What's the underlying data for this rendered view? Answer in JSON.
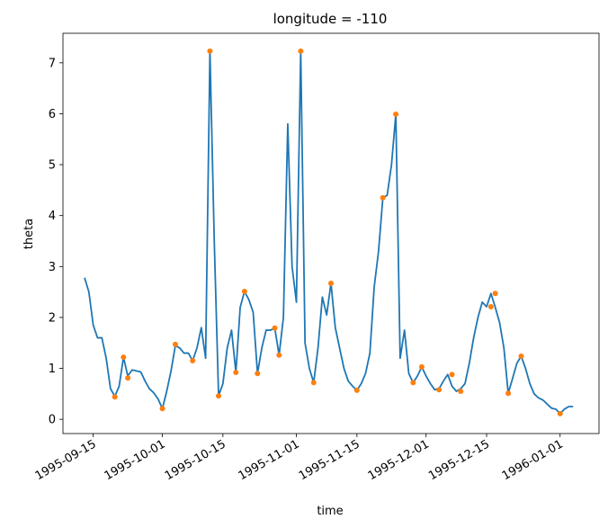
{
  "chart_data": {
    "type": "line",
    "title": "longitude = -110",
    "x_label": "time",
    "y_label": "theta",
    "xlim": [
      "1995-09-08",
      "1996-01-10"
    ],
    "xticks": [
      "1995-09-15",
      "1995-10-01",
      "1995-10-15",
      "1995-11-01",
      "1995-11-15",
      "1995-12-01",
      "1995-12-15",
      "1996-01-01"
    ],
    "ylim": [
      -0.28,
      7.58
    ],
    "yticks": [
      0,
      1,
      2,
      3,
      4,
      5,
      6,
      7
    ],
    "series": [
      {
        "type": "line",
        "color": "#1f77b4",
        "x": [
          "1995-09-13",
          "1995-09-14",
          "1995-09-15",
          "1995-09-16",
          "1995-09-17",
          "1995-09-18",
          "1995-09-19",
          "1995-09-20",
          "1995-09-21",
          "1995-09-22",
          "1995-09-23",
          "1995-09-24",
          "1995-09-25",
          "1995-09-26",
          "1995-09-27",
          "1995-09-28",
          "1995-09-29",
          "1995-09-30",
          "1995-10-01",
          "1995-10-02",
          "1995-10-03",
          "1995-10-04",
          "1995-10-05",
          "1995-10-06",
          "1995-10-07",
          "1995-10-08",
          "1995-10-09",
          "1995-10-10",
          "1995-10-11",
          "1995-10-12",
          "1995-10-13",
          "1995-10-14",
          "1995-10-15",
          "1995-10-16",
          "1995-10-17",
          "1995-10-18",
          "1995-10-19",
          "1995-10-20",
          "1995-10-21",
          "1995-10-22",
          "1995-10-23",
          "1995-10-24",
          "1995-10-25",
          "1995-10-26",
          "1995-10-27",
          "1995-10-28",
          "1995-10-29",
          "1995-10-30",
          "1995-10-31",
          "1995-11-01",
          "1995-11-02",
          "1995-11-03",
          "1995-11-04",
          "1995-11-05",
          "1995-11-06",
          "1995-11-07",
          "1995-11-08",
          "1995-11-09",
          "1995-11-10",
          "1995-11-11",
          "1995-11-12",
          "1995-11-13",
          "1995-11-14",
          "1995-11-15",
          "1995-11-16",
          "1995-11-17",
          "1995-11-18",
          "1995-11-19",
          "1995-11-20",
          "1995-11-21",
          "1995-11-22",
          "1995-11-23",
          "1995-11-24",
          "1995-11-25",
          "1995-11-26",
          "1995-11-27",
          "1995-11-28",
          "1995-11-29",
          "1995-11-30",
          "1995-12-01",
          "1995-12-02",
          "1995-12-03",
          "1995-12-04",
          "1995-12-05",
          "1995-12-06",
          "1995-12-07",
          "1995-12-08",
          "1995-12-09",
          "1995-12-10",
          "1995-12-11",
          "1995-12-12",
          "1995-12-13",
          "1995-12-14",
          "1995-12-15",
          "1995-12-16",
          "1995-12-17",
          "1995-12-18",
          "1995-12-19",
          "1995-12-20",
          "1995-12-21",
          "1995-12-22",
          "1995-12-23",
          "1995-12-24",
          "1995-12-25",
          "1995-12-26",
          "1995-12-27",
          "1995-12-28",
          "1995-12-29",
          "1995-12-30",
          "1995-12-31",
          "1996-01-01",
          "1996-01-02",
          "1996-01-03",
          "1996-01-04"
        ],
        "values": [
          2.78,
          2.5,
          1.85,
          1.6,
          1.6,
          1.2,
          0.6,
          0.45,
          0.65,
          1.22,
          0.85,
          0.97,
          0.95,
          0.93,
          0.75,
          0.6,
          0.52,
          0.4,
          0.21,
          0.55,
          0.95,
          1.45,
          1.4,
          1.3,
          1.3,
          1.15,
          1.4,
          1.8,
          1.2,
          7.23,
          3.5,
          0.46,
          0.7,
          1.4,
          1.75,
          0.92,
          2.2,
          2.51,
          2.35,
          2.1,
          0.9,
          1.4,
          1.75,
          1.75,
          1.79,
          1.26,
          2.0,
          5.8,
          3.0,
          2.3,
          7.23,
          1.5,
          1.0,
          0.72,
          1.4,
          2.4,
          2.05,
          2.67,
          1.8,
          1.4,
          1.0,
          0.75,
          0.65,
          0.57,
          0.7,
          0.9,
          1.3,
          2.6,
          3.3,
          4.35,
          4.4,
          5.0,
          5.99,
          1.2,
          1.75,
          0.9,
          0.72,
          0.85,
          1.03,
          0.85,
          0.7,
          0.58,
          0.6,
          0.75,
          0.88,
          0.65,
          0.55,
          0.6,
          0.7,
          1.1,
          1.6,
          2.0,
          2.3,
          2.21,
          2.47,
          2.2,
          1.9,
          1.4,
          0.51,
          0.8,
          1.1,
          1.24,
          1.0,
          0.7,
          0.5,
          0.42,
          0.38,
          0.3,
          0.22,
          0.2,
          0.11,
          0.2,
          0.25,
          0.25
        ]
      },
      {
        "type": "scatter",
        "color": "#ff7f0e",
        "x": [
          "1995-09-20",
          "1995-09-22",
          "1995-09-23",
          "1995-10-01",
          "1995-10-04",
          "1995-10-08",
          "1995-10-12",
          "1995-10-14",
          "1995-10-18",
          "1995-10-20",
          "1995-10-23",
          "1995-10-27",
          "1995-10-28",
          "1995-11-02",
          "1995-11-05",
          "1995-11-09",
          "1995-11-15",
          "1995-11-21",
          "1995-11-24",
          "1995-11-28",
          "1995-11-30",
          "1995-12-04",
          "1995-12-07",
          "1995-12-09",
          "1995-12-16",
          "1995-12-17",
          "1995-12-20",
          "1995-12-23",
          "1996-01-01"
        ],
        "values": [
          0.44,
          1.22,
          0.81,
          0.21,
          1.47,
          1.15,
          7.23,
          0.46,
          0.92,
          2.51,
          0.9,
          1.79,
          1.26,
          7.23,
          0.72,
          2.67,
          0.57,
          4.35,
          5.99,
          0.72,
          1.03,
          0.58,
          0.88,
          0.55,
          2.21,
          2.47,
          0.51,
          1.24,
          0.11
        ]
      }
    ]
  }
}
